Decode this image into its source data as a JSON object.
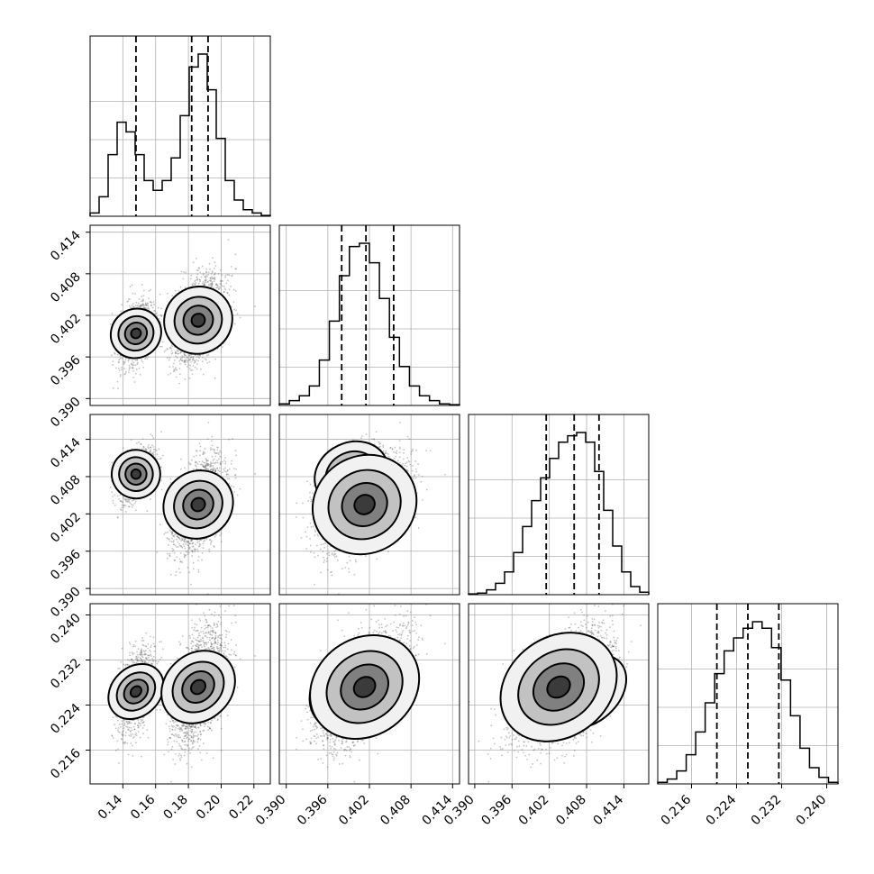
{
  "chart_data": {
    "type": "corner",
    "grid": true,
    "parameters": [
      {
        "range": [
          0.12,
          0.23
        ],
        "ticks": [
          "0.14",
          "0.16",
          "0.18",
          "0.20",
          "0.22"
        ],
        "tick_values": [
          0.14,
          0.16,
          0.18,
          0.2,
          0.22
        ]
      },
      {
        "range": [
          0.389,
          0.415
        ],
        "ticks": [
          "0.390",
          "0.396",
          "0.402",
          "0.408",
          "0.414"
        ],
        "tick_values": [
          0.39,
          0.396,
          0.402,
          0.408,
          0.414
        ]
      },
      {
        "range": [
          0.389,
          0.418
        ],
        "ticks": [
          "0.390",
          "0.396",
          "0.402",
          "0.408",
          "0.414"
        ],
        "tick_values": [
          0.39,
          0.396,
          0.402,
          0.408,
          0.414
        ]
      },
      {
        "range": [
          0.21,
          0.242
        ],
        "ticks": [
          "0.216",
          "0.224",
          "0.232",
          "0.240"
        ],
        "tick_values": [
          0.216,
          0.224,
          0.232,
          0.24
        ]
      }
    ],
    "quantiles": [
      [
        0.148,
        0.182,
        0.192
      ],
      [
        0.398,
        0.4015,
        0.4055
      ],
      [
        0.4015,
        0.406,
        0.41
      ],
      [
        0.2205,
        0.226,
        0.2315
      ]
    ],
    "histograms": [
      {
        "values": [
          0.02,
          0.12,
          0.38,
          0.58,
          0.52,
          0.38,
          0.22,
          0.16,
          0.22,
          0.36,
          0.62,
          0.92,
          1.0,
          0.78,
          0.48,
          0.22,
          0.1,
          0.04,
          0.02,
          0.005
        ]
      },
      {
        "values": [
          0.01,
          0.03,
          0.06,
          0.12,
          0.28,
          0.52,
          0.8,
          0.98,
          1.0,
          0.88,
          0.66,
          0.42,
          0.24,
          0.12,
          0.06,
          0.03,
          0.01,
          0.005
        ]
      },
      {
        "values": [
          0.005,
          0.01,
          0.03,
          0.07,
          0.14,
          0.26,
          0.42,
          0.58,
          0.72,
          0.84,
          0.94,
          0.98,
          1.0,
          0.94,
          0.76,
          0.52,
          0.3,
          0.14,
          0.05,
          0.015
        ]
      },
      {
        "values": [
          0.01,
          0.03,
          0.08,
          0.18,
          0.32,
          0.5,
          0.68,
          0.82,
          0.9,
          0.96,
          1.0,
          0.96,
          0.84,
          0.64,
          0.42,
          0.22,
          0.1,
          0.04,
          0.01
        ]
      }
    ],
    "modes": [
      {
        "w": 0.33,
        "mean": [
          0.148,
          0.3994,
          0.4084,
          0.2264
        ],
        "sd": [
          0.0055,
          0.0022,
          0.0021,
          0.0038
        ]
      },
      {
        "w": 0.67,
        "mean": [
          0.186,
          0.4013,
          0.4035,
          0.2272
        ],
        "sd": [
          0.0075,
          0.0029,
          0.0035,
          0.0048
        ]
      }
    ]
  },
  "colors": {
    "points": "#555555",
    "lines": "#000000"
  }
}
